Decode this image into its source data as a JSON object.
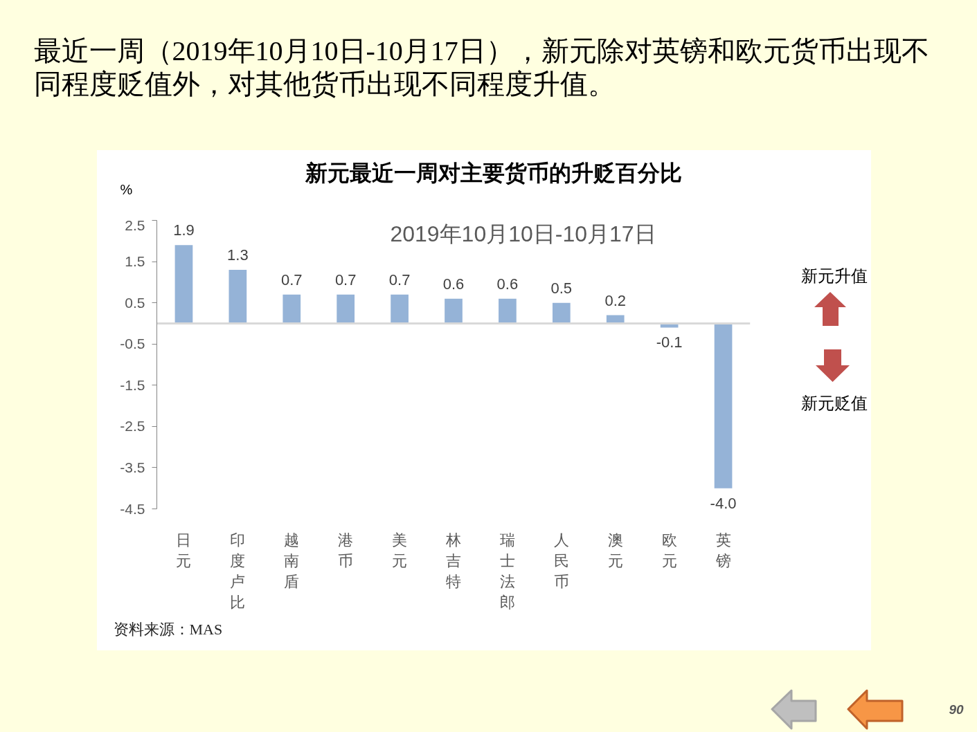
{
  "chart_data": {
    "type": "bar",
    "title": "新元最近一周对主要货币的升贬百分比",
    "subtitle": "2019年10月10日-10月17日",
    "ylabel": "%",
    "categories": [
      "日元",
      "印度卢比",
      "越南盾",
      "港币",
      "美元",
      "林吉特",
      "瑞士法郎",
      "人民币",
      "澳元",
      "欧元",
      "英镑"
    ],
    "values": [
      1.9,
      1.3,
      0.7,
      0.7,
      0.7,
      0.6,
      0.6,
      0.5,
      0.2,
      -0.1,
      -4.0
    ],
    "color": "#95b3d7",
    "value_labels": [
      "1.9",
      "1.3",
      "0.7",
      "0.7",
      "0.7",
      "0.6",
      "0.6",
      "0.5",
      "0.2",
      "-0.1",
      "-4.0"
    ],
    "ylim": [
      -4.5,
      2.5
    ],
    "yticks": [
      -4.5,
      -3.5,
      -2.5,
      -1.5,
      -0.5,
      0.5,
      1.5,
      2.5
    ],
    "annotations": [
      "最近一周（2019年10月10日-10月17日），新元除对英镑和欧元货币出现不同程度贬值外，对其他货币出现不同程度升值。",
      "新元升值",
      "新元贬值",
      "资料来源：MAS",
      "90"
    ]
  }
}
